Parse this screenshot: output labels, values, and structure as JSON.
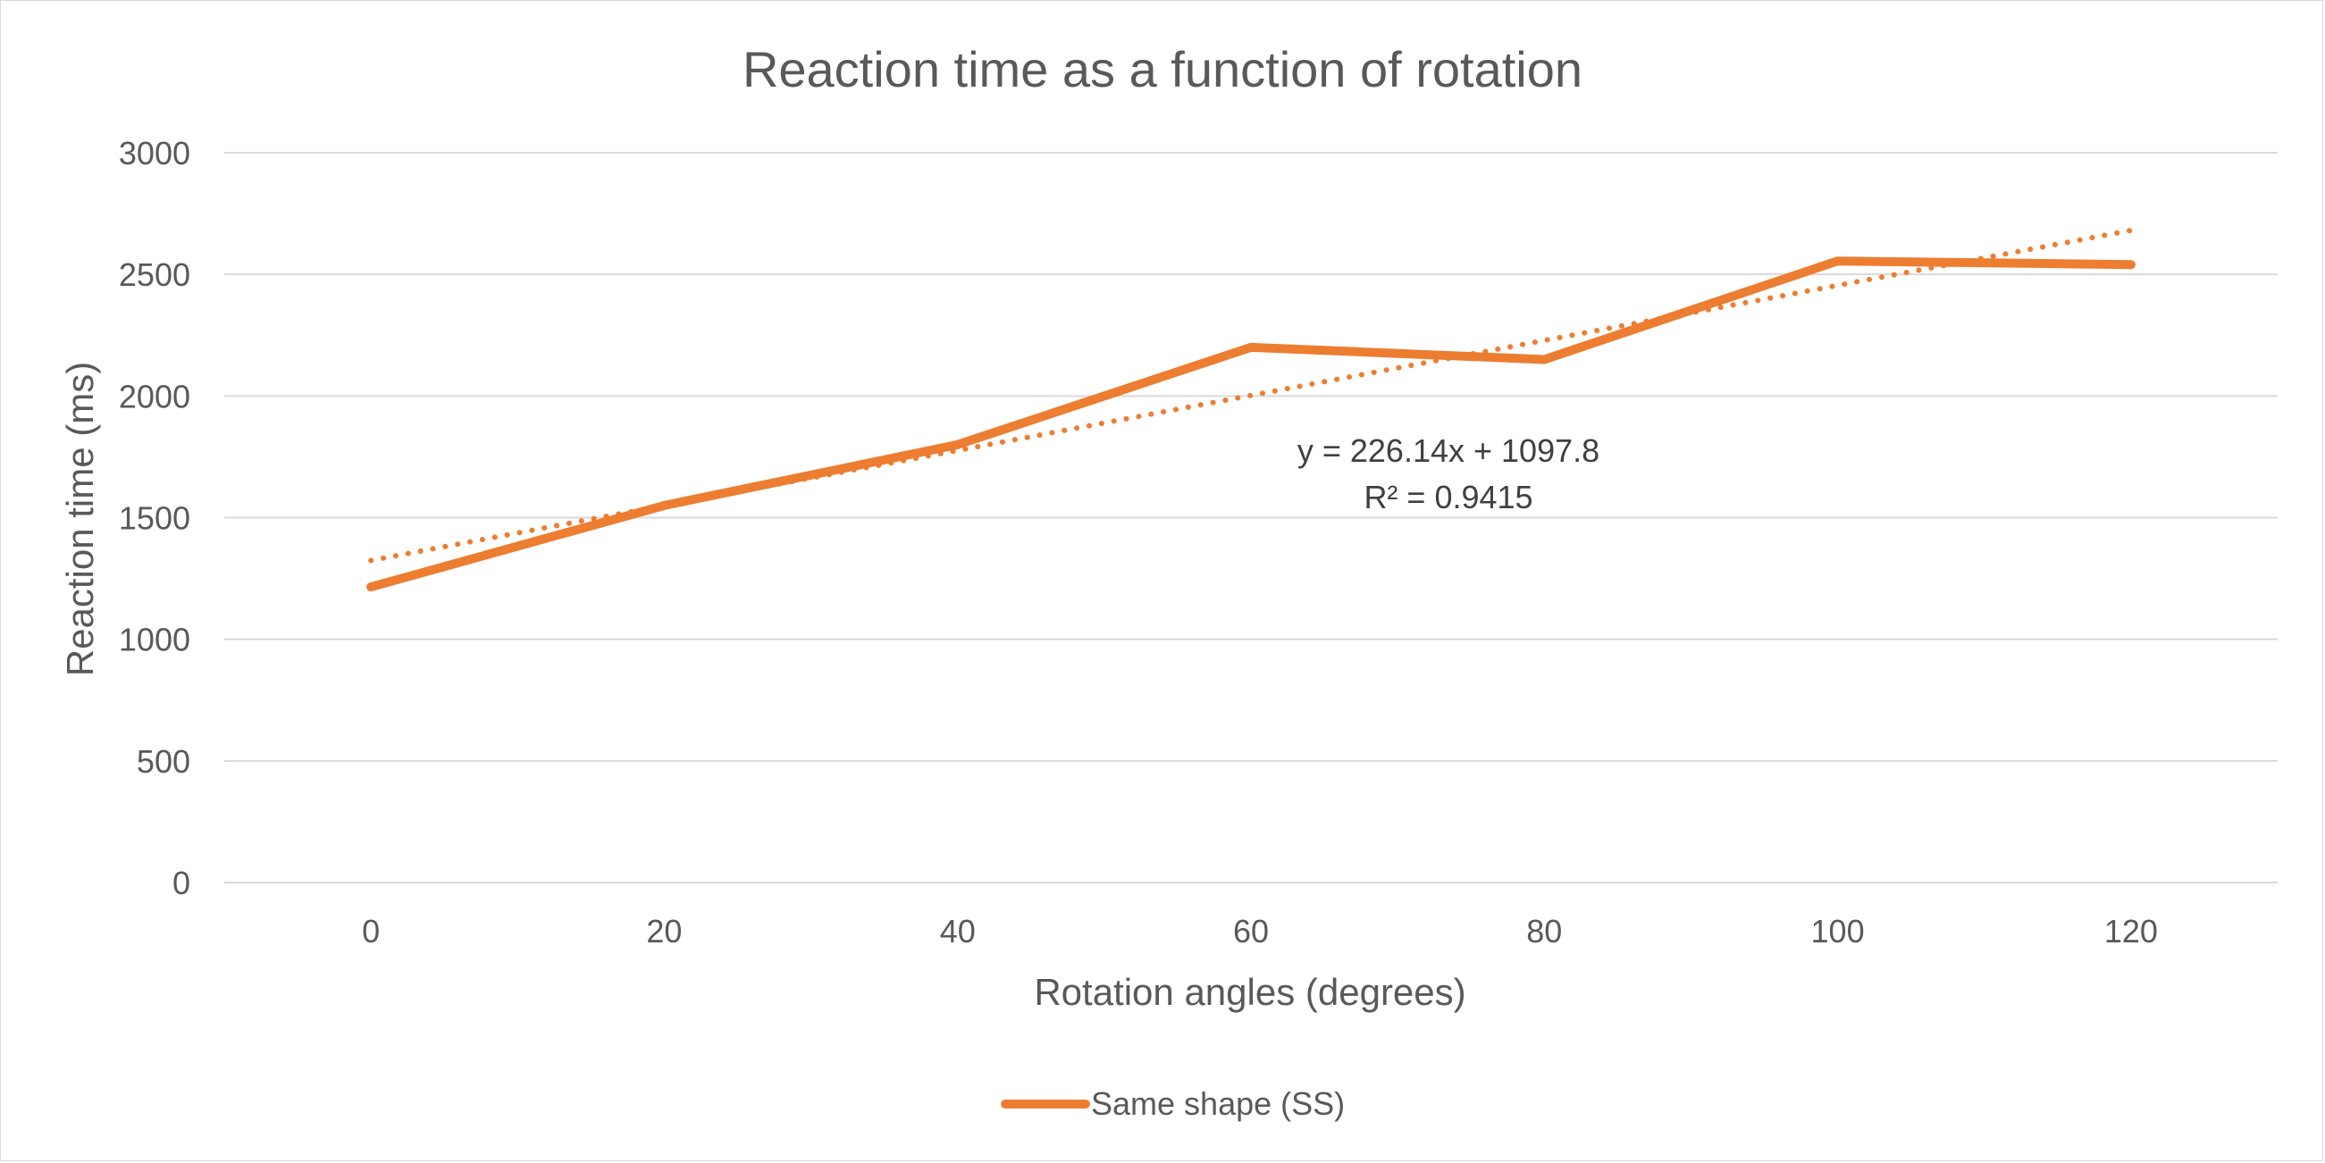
{
  "chart_data": {
    "type": "line",
    "title": "Reaction time as a function of rotation",
    "xlabel": "Rotation angles (degrees)",
    "ylabel": "Reaction time (ms)",
    "categories": [
      "0",
      "20",
      "40",
      "60",
      "80",
      "100",
      "120"
    ],
    "ylim": [
      0,
      3000
    ],
    "yticks": [
      0,
      500,
      1000,
      1500,
      2000,
      2500,
      3000
    ],
    "grid": true,
    "legend_position": "bottom",
    "series": [
      {
        "name": "Same shape (SS)",
        "color": "#ed7d31",
        "values": [
          1215,
          1550,
          1800,
          2200,
          2150,
          2555,
          2540
        ]
      }
    ],
    "trendline": {
      "type": "linear",
      "color": "#ed7d31",
      "slope": 226.14,
      "intercept": 1097.8,
      "equation_label": "y = 226.14x + 1097.8",
      "r2_label": "R² = 0.9415"
    }
  }
}
